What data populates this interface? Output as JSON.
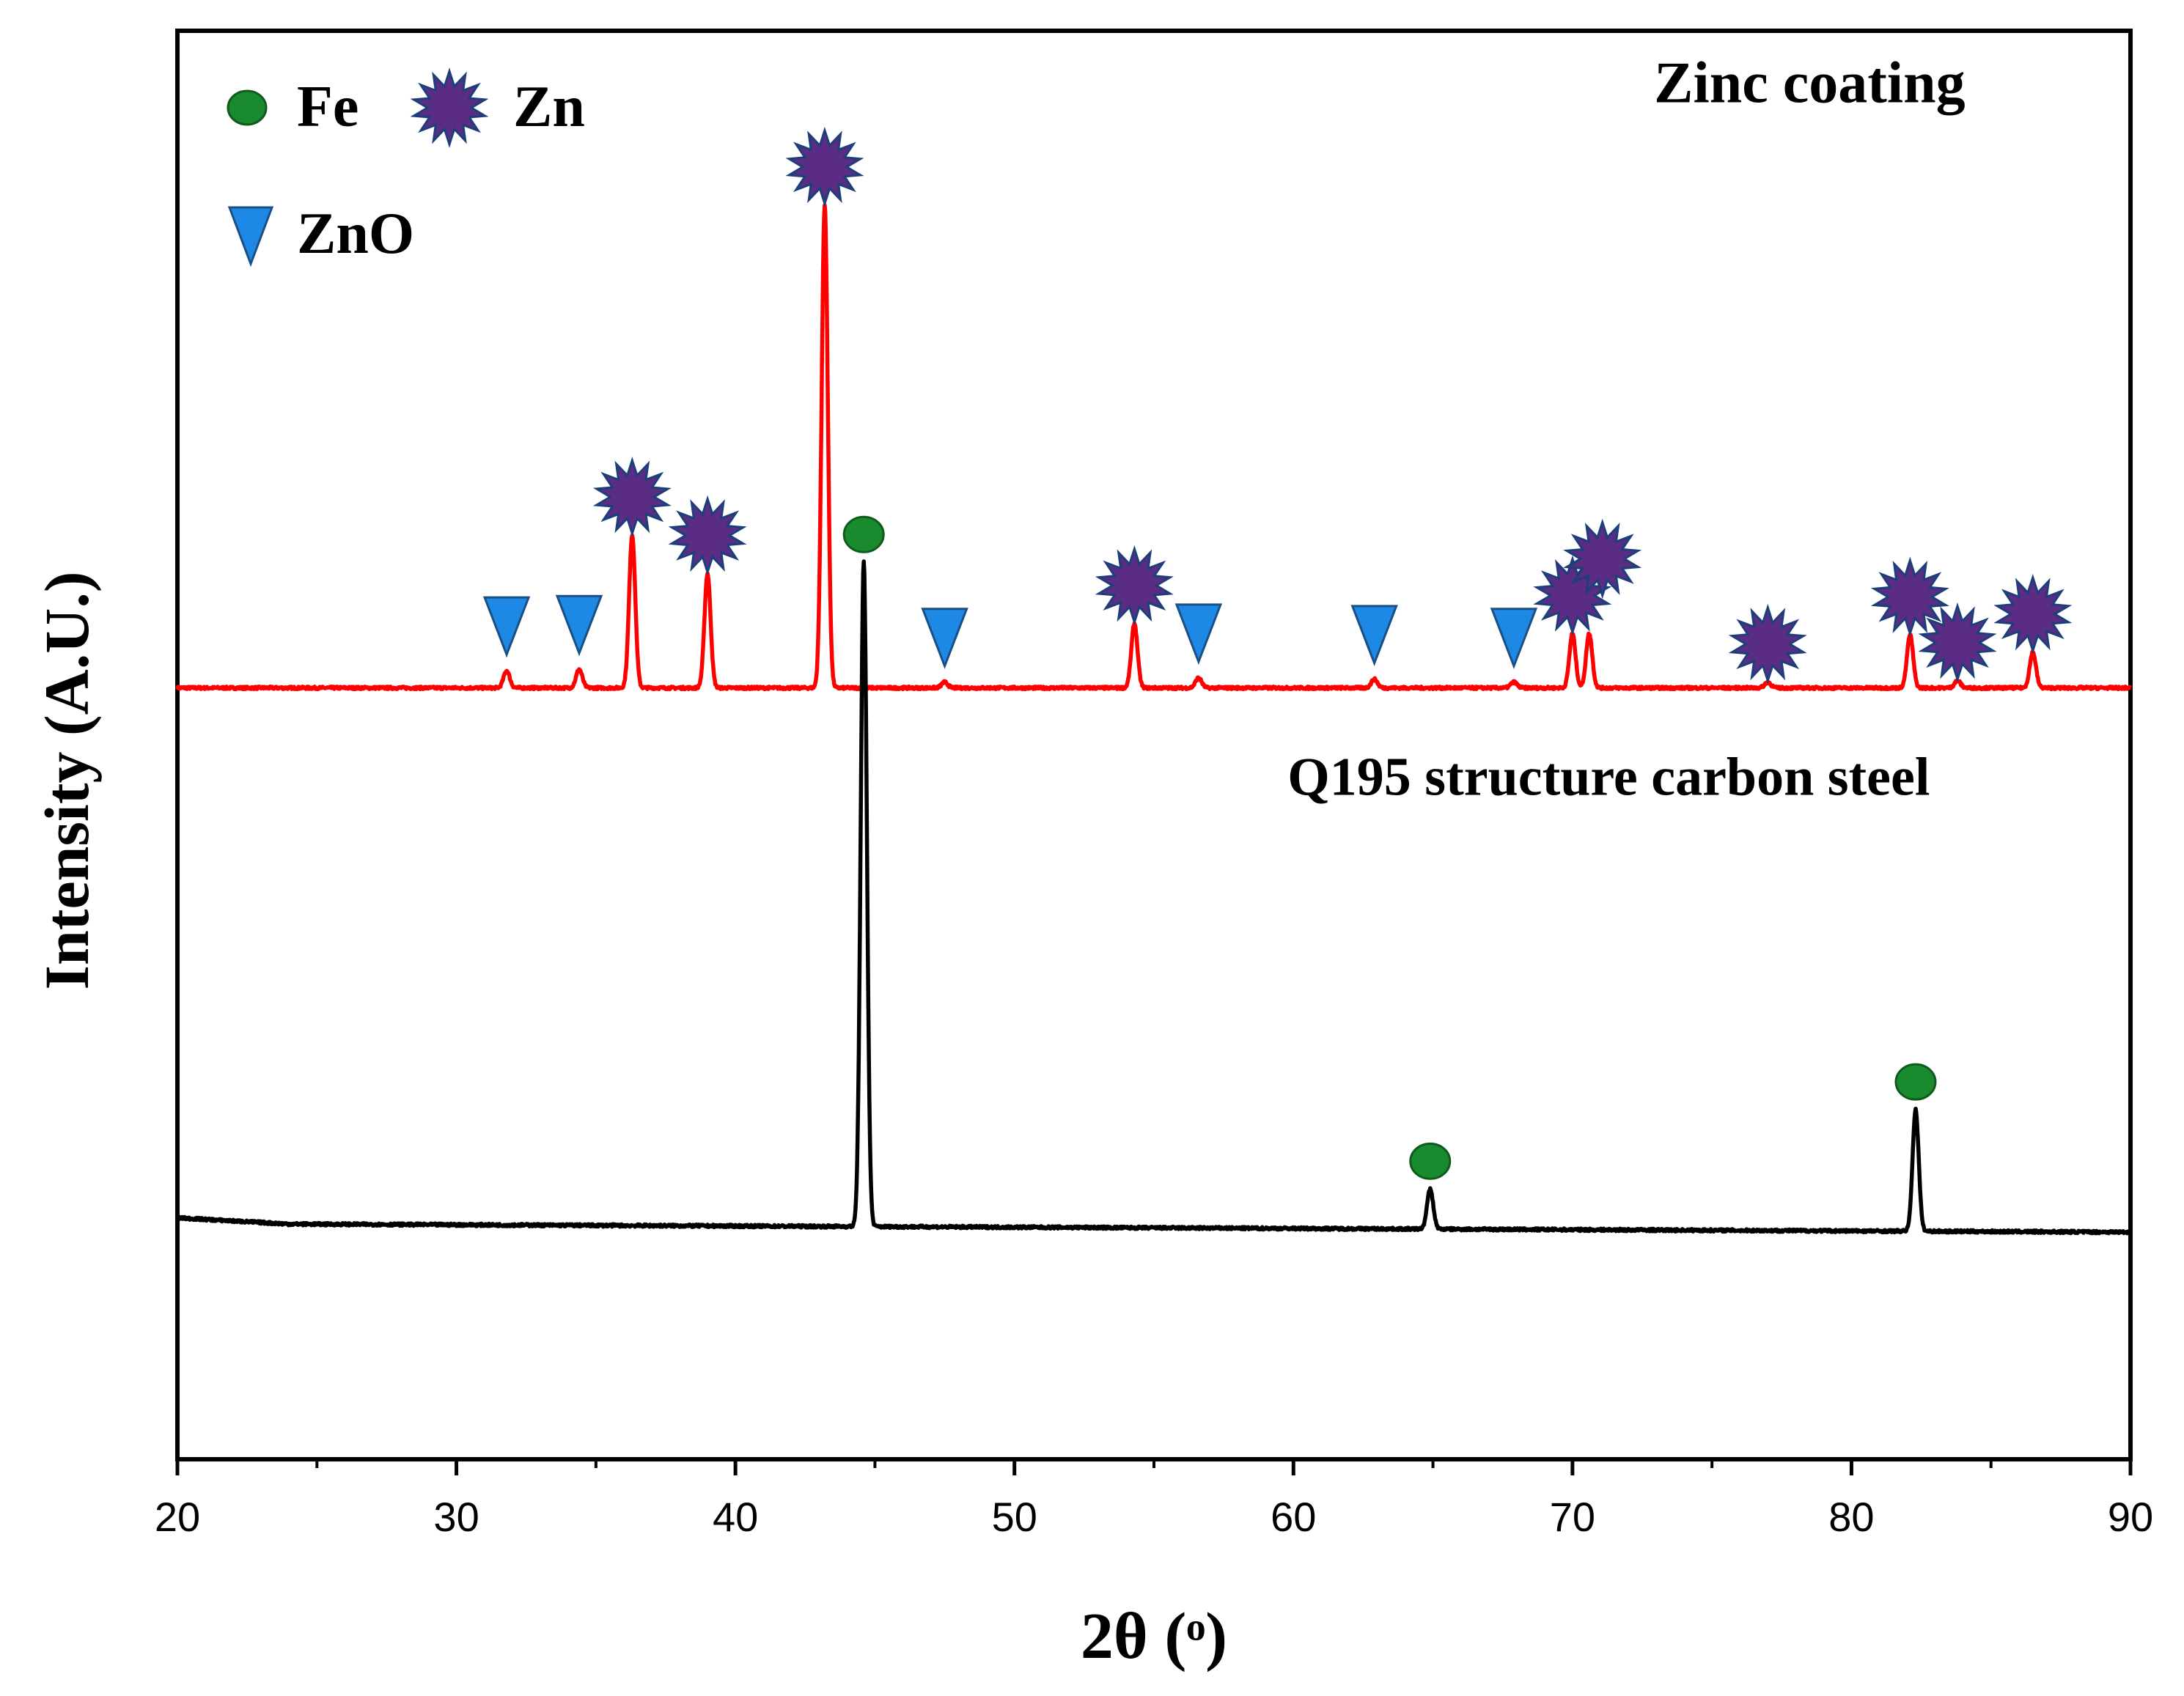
{
  "chart_data": {
    "type": "line",
    "title": "",
    "xlabel": "2θ (ᵒ)",
    "ylabel": "Intensity (A.U.)",
    "xlim": [
      20,
      90
    ],
    "x_ticks": [
      "20",
      "30",
      "40",
      "50",
      "60",
      "70",
      "80",
      "90"
    ],
    "x_tick_values": [
      20,
      30,
      40,
      50,
      60,
      70,
      80,
      90
    ],
    "ylim": [
      0,
      1
    ],
    "grid": false,
    "legend": {
      "placement": "top-left",
      "items": [
        {
          "label": "Fe",
          "marker": "circle",
          "color": "#1a8a2e"
        },
        {
          "label": "Zn",
          "marker": "star",
          "color": "#5b2c83"
        },
        {
          "label": "ZnO",
          "marker": "triangle-down",
          "color": "#1e88e5"
        }
      ]
    },
    "series": [
      {
        "name": "Zinc coating",
        "color": "#ff0000",
        "baseline": 0.54,
        "slope": 0,
        "peaks": [
          {
            "x": 31.8,
            "h": 0.012,
            "phase": "ZnO"
          },
          {
            "x": 34.4,
            "h": 0.013,
            "phase": "ZnO"
          },
          {
            "x": 36.3,
            "h": 0.107,
            "phase": "Zn"
          },
          {
            "x": 39.0,
            "h": 0.08,
            "phase": "Zn"
          },
          {
            "x": 43.2,
            "h": 0.338,
            "phase": "Zn"
          },
          {
            "x": 47.5,
            "h": 0.004,
            "phase": "ZnO"
          },
          {
            "x": 54.3,
            "h": 0.045,
            "phase": "Zn"
          },
          {
            "x": 56.6,
            "h": 0.007,
            "phase": "ZnO"
          },
          {
            "x": 62.9,
            "h": 0.006,
            "phase": "ZnO"
          },
          {
            "x": 67.9,
            "h": 0.004,
            "phase": "ZnO"
          },
          {
            "x": 70.0,
            "h": 0.038,
            "phase": "Zn"
          },
          {
            "x": 70.6,
            "h": 0.038,
            "phase": "Zn"
          },
          {
            "x": 77.0,
            "h": 0.004,
            "phase": "Zn"
          },
          {
            "x": 82.1,
            "h": 0.037,
            "phase": "Zn"
          },
          {
            "x": 83.8,
            "h": 0.005,
            "phase": "Zn"
          },
          {
            "x": 86.5,
            "h": 0.025,
            "phase": "Zn"
          }
        ]
      },
      {
        "name": "Q195 structure carbon steel",
        "color": "#000000",
        "baseline": 0.165,
        "slope": -0.006,
        "peaks": [
          {
            "x": 44.6,
            "h": 0.465,
            "phase": "Fe"
          },
          {
            "x": 64.9,
            "h": 0.028,
            "phase": "Fe"
          },
          {
            "x": 82.3,
            "h": 0.085,
            "phase": "Fe"
          }
        ]
      }
    ],
    "annotations": [
      {
        "text": "Zinc coating",
        "x": 78.5,
        "y": 0.95
      },
      {
        "text": "Q195 structure carbon steel",
        "x": 71.3,
        "y": 0.465
      }
    ]
  }
}
